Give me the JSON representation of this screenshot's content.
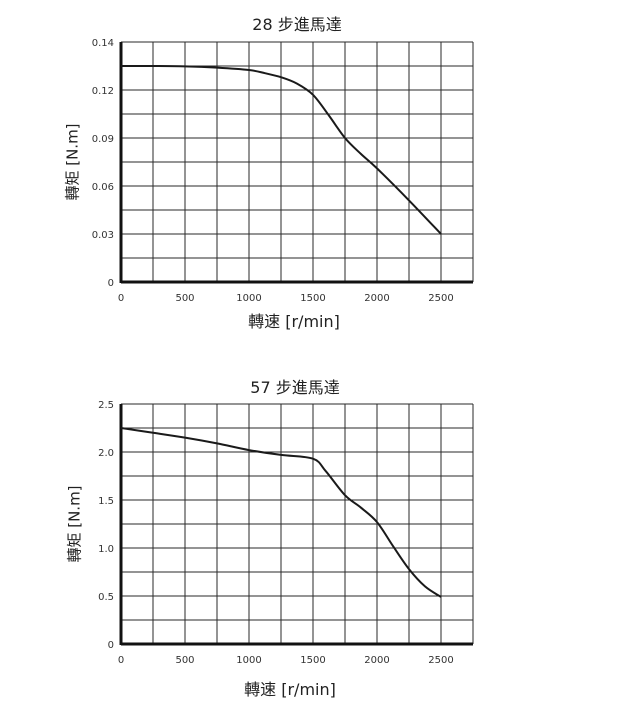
{
  "chart_data": [
    {
      "type": "line",
      "title": "28 步進馬達",
      "xlabel": "轉速 [r/min]",
      "ylabel": "轉矩 [N.m]",
      "x_ticks": [
        "0",
        "500",
        "1000",
        "1500",
        "2000",
        "2500"
      ],
      "y_ticks": [
        "0",
        "0.03",
        "0.06",
        "0.09",
        "0.12",
        "0.14"
      ],
      "xlim": [
        0,
        2750
      ],
      "ylim": [
        0,
        0.15
      ],
      "grid": true,
      "x": [
        0,
        250,
        500,
        750,
        1000,
        1125,
        1250,
        1375,
        1500,
        1625,
        1750,
        1875,
        2000,
        2250,
        2500
      ],
      "series": [
        {
          "name": "28 步進馬達",
          "values": [
            0.135,
            0.135,
            0.1348,
            0.134,
            0.1325,
            0.1305,
            0.128,
            0.124,
            0.117,
            0.104,
            0.09,
            0.08,
            0.071,
            0.051,
            0.03
          ]
        }
      ]
    },
    {
      "type": "line",
      "title": "57 步進馬達",
      "xlabel": "轉速 [r/min]",
      "ylabel": "轉矩 [N.m]",
      "x_ticks": [
        "0",
        "500",
        "1000",
        "1500",
        "2000",
        "2500"
      ],
      "y_ticks": [
        "0",
        "0.5",
        "1.0",
        "1.5",
        "2.0",
        "2.5"
      ],
      "xlim": [
        0,
        2750
      ],
      "ylim": [
        0,
        2.5
      ],
      "grid": true,
      "x": [
        0,
        250,
        500,
        750,
        1000,
        1250,
        1500,
        1600,
        1750,
        1875,
        2000,
        2125,
        2250,
        2375,
        2500
      ],
      "series": [
        {
          "name": "57 步進馬達",
          "values": [
            2.25,
            2.2,
            2.15,
            2.09,
            2.02,
            1.97,
            1.93,
            1.8,
            1.55,
            1.42,
            1.27,
            1.02,
            0.78,
            0.6,
            0.49
          ]
        }
      ]
    }
  ],
  "charts": [
    {
      "title": "28 步進馬達",
      "xlabel": "轉速 [r/min]",
      "ylabel": "轉矩 [N.m]"
    },
    {
      "title": "57 步進馬達",
      "xlabel": "轉速 [r/min]",
      "ylabel": "轉矩 [N.m]"
    }
  ],
  "colors": {
    "line": "#1a1a1a",
    "grid": "#2a2a2a",
    "axis": "#111111"
  }
}
